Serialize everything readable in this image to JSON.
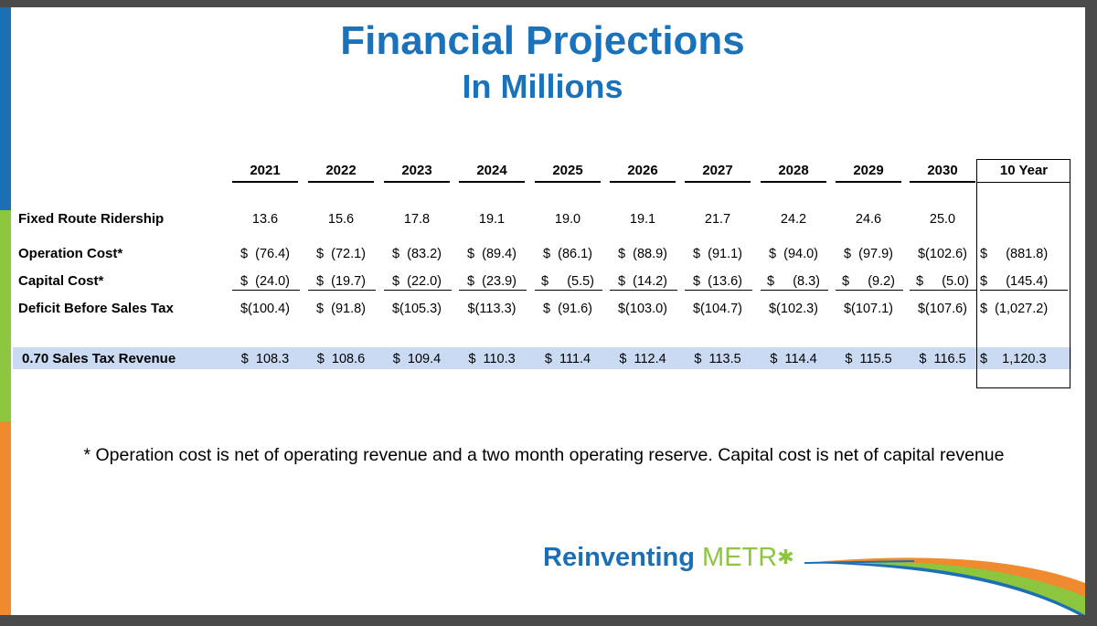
{
  "title": "Financial Projections",
  "subtitle": "In Millions",
  "years": [
    "2021",
    "2022",
    "2023",
    "2024",
    "2025",
    "2026",
    "2027",
    "2028",
    "2029",
    "2030"
  ],
  "total_header": "10 Year",
  "rows": [
    {
      "label": "Fixed Route Ridership",
      "values": [
        "13.6",
        "15.6",
        "17.8",
        "19.1",
        "19.0",
        "19.1",
        "21.7",
        "24.2",
        "24.6",
        "25.0"
      ],
      "total": ""
    },
    {
      "label": "Operation Cost*",
      "values": [
        "$  (76.4)",
        "$  (72.1)",
        "$  (83.2)",
        "$  (89.4)",
        "$  (86.1)",
        "$  (88.9)",
        "$  (91.1)",
        "$  (94.0)",
        "$  (97.9)",
        "$(102.6)"
      ],
      "total": "$     (881.8)"
    },
    {
      "label": "Capital Cost*",
      "values": [
        "$  (24.0)",
        "$  (19.7)",
        "$  (22.0)",
        "$  (23.9)",
        "$     (5.5)",
        "$  (14.2)",
        "$  (13.6)",
        "$     (8.3)",
        "$     (9.2)",
        "$     (5.0)"
      ],
      "total": "$     (145.4)"
    },
    {
      "label": "Deficit Before Sales Tax",
      "values": [
        "$(100.4)",
        "$  (91.8)",
        "$(105.3)",
        "$(113.3)",
        "$  (91.6)",
        "$(103.0)",
        "$(104.7)",
        "$(102.3)",
        "$(107.1)",
        "$(107.6)"
      ],
      "total": "$  (1,027.2)"
    },
    {
      "label": "0.70 Sales Tax Revenue",
      "values": [
        "$  108.3",
        "$  108.6",
        "$  109.4",
        "$  110.3",
        "$  111.4",
        "$  112.4",
        "$  113.5",
        "$  114.4",
        "$  115.5",
        "$  116.5"
      ],
      "total": "$    1,120.3"
    }
  ],
  "footnote": "* Operation cost is net of operating revenue and a two month operating reserve.  Capital cost is net of capital revenue",
  "logo": {
    "word1": "Reinventing",
    "word2": "METR",
    "o_glyph": "✱"
  },
  "colors": {
    "brand_blue": "#1a72bb",
    "brand_green": "#8cc63f",
    "brand_orange": "#ef8a2e",
    "highlight": "#c9daf2"
  }
}
